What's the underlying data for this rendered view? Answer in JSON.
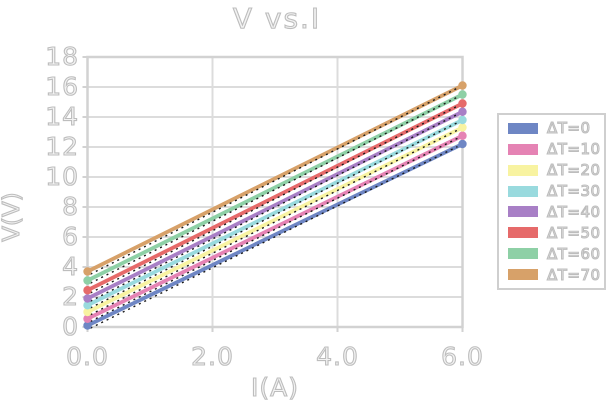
{
  "chart_data": {
    "type": "line",
    "title": "V vs.I",
    "xlabel": "I(A)",
    "ylabel": "V(V)",
    "xlim": [
      0,
      6
    ],
    "ylim": [
      0,
      18
    ],
    "xticks": [
      {
        "value": 0,
        "label": "0.0"
      },
      {
        "value": 2,
        "label": "2.0"
      },
      {
        "value": 4,
        "label": "4.0"
      },
      {
        "value": 6,
        "label": "6.0"
      }
    ],
    "yticks": [
      {
        "value": 0,
        "label": "0"
      },
      {
        "value": 2,
        "label": "2"
      },
      {
        "value": 4,
        "label": "4"
      },
      {
        "value": 6,
        "label": "6"
      },
      {
        "value": 8,
        "label": "8"
      },
      {
        "value": 10,
        "label": "10"
      },
      {
        "value": 12,
        "label": "12"
      },
      {
        "value": 14,
        "label": "14"
      },
      {
        "value": 16,
        "label": "16"
      },
      {
        "value": 18,
        "label": "18"
      }
    ],
    "grid": true,
    "legend_position": "right-outside",
    "x": [
      0,
      6
    ],
    "series": [
      {
        "name": "ΔT=0",
        "color": "#6e86c4",
        "y": [
          0.1,
          12.2
        ]
      },
      {
        "name": "ΔT=10",
        "color": "#e583b4",
        "y": [
          0.55,
          12.75
        ]
      },
      {
        "name": "ΔT=20",
        "color": "#f8f3a1",
        "y": [
          1.0,
          13.3
        ]
      },
      {
        "name": "ΔT=30",
        "color": "#99dade",
        "y": [
          1.45,
          13.8
        ]
      },
      {
        "name": "ΔT=40",
        "color": "#a87fc6",
        "y": [
          1.9,
          14.35
        ]
      },
      {
        "name": "ΔT=50",
        "color": "#e66a6a",
        "y": [
          2.45,
          14.9
        ]
      },
      {
        "name": "ΔT=60",
        "color": "#8ed0a6",
        "y": [
          3.1,
          15.5
        ]
      },
      {
        "name": "ΔT=70",
        "color": "#d7a169",
        "y": [
          3.7,
          16.1
        ]
      }
    ],
    "trendlines": {
      "present": true,
      "style": "dotted",
      "color": "#1a1a1a"
    },
    "markers": {
      "shape": "circle",
      "at": "series endpoints"
    },
    "grid_color": "#dcdcdc",
    "frame_color": "#d2d2d2"
  }
}
